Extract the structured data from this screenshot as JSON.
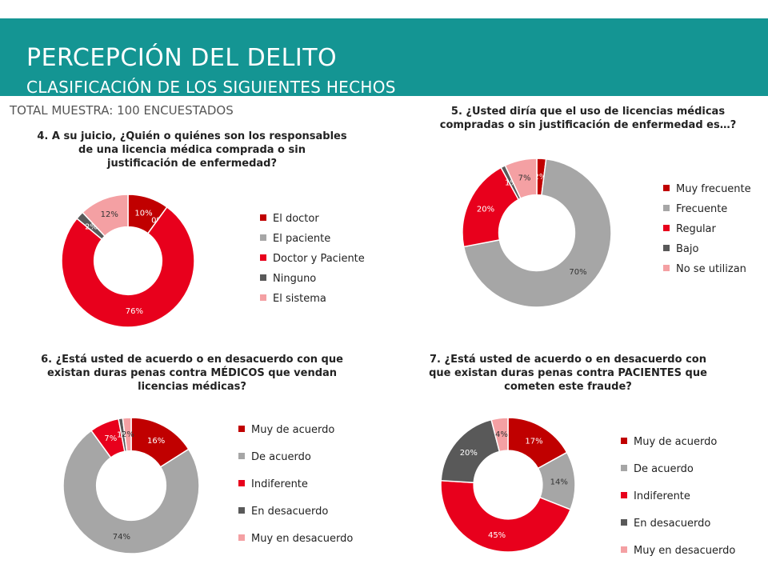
{
  "header": {
    "title": "PERCEPCIÓN DEL DELITO",
    "subtitle": "CLASIFICACIÓN DE LOS SIGUIENTES HECHOS",
    "total": "TOTAL  MUESTRA: 100 ENCUESTADOS"
  },
  "colors": {
    "banner": "#149593",
    "dark_red": "#c00000",
    "gray": "#a6a6a6",
    "red": "#e8001c",
    "dark_gray": "#595959",
    "pink": "#f4a0a3"
  },
  "chart_data": [
    {
      "type": "pie",
      "title_lines": [
        "4. A su juicio, ¿Quién o quiénes son los responsables",
        "de una licencia médica comprada o sin",
        "justificación de enfermedad?"
      ],
      "categories": [
        "El doctor",
        "El paciente",
        "Doctor y Paciente",
        "Ninguno",
        "El sistema"
      ],
      "values": [
        10,
        0,
        76,
        2,
        12
      ],
      "labels": [
        "10%",
        "0%",
        "76%",
        "2%",
        "12%"
      ],
      "colors": [
        "#c00000",
        "#a6a6a6",
        "#e8001c",
        "#595959",
        "#f4a0a3"
      ],
      "legend": "right"
    },
    {
      "type": "pie",
      "title_lines": [
        "5. ¿Usted diría que el uso de licencias médicas",
        "compradas o sin justificación de enfermedad es…?"
      ],
      "categories": [
        "Muy frecuente",
        "Frecuente",
        "Regular",
        "Bajo",
        "No se utilizan"
      ],
      "values": [
        2,
        70,
        20,
        1,
        7
      ],
      "labels": [
        "2%",
        "70%",
        "20%",
        "1%",
        "7%"
      ],
      "colors": [
        "#c00000",
        "#a6a6a6",
        "#e8001c",
        "#595959",
        "#f4a0a3"
      ],
      "legend": "right"
    },
    {
      "type": "pie",
      "title_lines": [
        "6. ¿Está usted de acuerdo o en desacuerdo con que",
        "existan duras penas contra MÉDICOS que vendan",
        "licencias médicas?"
      ],
      "categories": [
        "Muy de acuerdo",
        "De acuerdo",
        "Indiferente",
        "En desacuerdo",
        "Muy en desacuerdo"
      ],
      "values": [
        16,
        74,
        7,
        1,
        2
      ],
      "labels": [
        "16%",
        "74%",
        "7%",
        "1%",
        "2%"
      ],
      "colors": [
        "#c00000",
        "#a6a6a6",
        "#e8001c",
        "#595959",
        "#f4a0a3"
      ],
      "legend": "right"
    },
    {
      "type": "pie",
      "title_lines": [
        "7. ¿Está usted de acuerdo o en desacuerdo con",
        "que existan duras penas contra PACIENTES que",
        "cometen este fraude?"
      ],
      "categories": [
        "Muy de acuerdo",
        "De acuerdo",
        "Indiferente",
        "En desacuerdo",
        "Muy en desacuerdo"
      ],
      "values": [
        17,
        14,
        45,
        20,
        4
      ],
      "labels": [
        "17%",
        "14%",
        "45%",
        "20%",
        "4%"
      ],
      "colors": [
        "#c00000",
        "#a6a6a6",
        "#e8001c",
        "#595959",
        "#f4a0a3"
      ],
      "legend": "right"
    }
  ]
}
